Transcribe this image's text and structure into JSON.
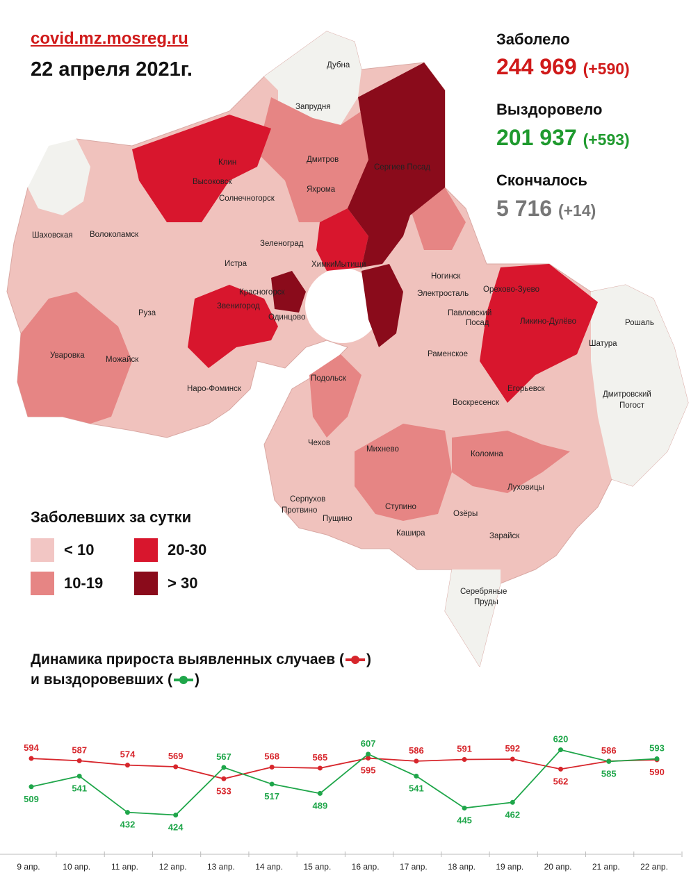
{
  "header": {
    "site": "covid.mz.mosreg.ru",
    "date": "22 апреля 2021г."
  },
  "stats": {
    "infected": {
      "label": "Заболело",
      "value": "244 969",
      "delta": "(+590)",
      "color": "#d01a1a"
    },
    "recovered": {
      "label": "Выздоровело",
      "value": "201 937",
      "delta": "(+593)",
      "color": "#1f9a2e"
    },
    "died": {
      "label": "Скончалось",
      "value": "5 716",
      "delta": "(+14)",
      "color": "#777777"
    }
  },
  "map": {
    "labels": [
      "Дубна",
      "Запрудня",
      "Клин",
      "Высоковск",
      "Дмитров",
      "Яхрома",
      "Сергиев Посад",
      "Солнечногорск",
      "Шаховская",
      "Волоколамск",
      "Зеленоград",
      "Истра",
      "Мытищи",
      "Химки",
      "Ногинск",
      "Электросталь",
      "Орехово-Зуево",
      "Ликино-Дулёво",
      "Рошаль",
      "Красногорск",
      "Звенигород",
      "Одинцово",
      "Павловский",
      "Посад",
      "Руза",
      "Уваровка",
      "Можайск",
      "Шатура",
      "Раменское",
      "Наро-Фоминск",
      "Подольск",
      "Егорьевск",
      "Воскресенск",
      "Дмитровский",
      "Погост",
      "Чехов",
      "Михнево",
      "Коломна",
      "Луховицы",
      "Серпухов",
      "Пущино",
      "Ступино",
      "Озёры",
      "Протвино",
      "Кашира",
      "Зарайск",
      "Серебряные",
      "Пруды"
    ],
    "colors": {
      "lt10": "#f2c6c4",
      "10_19": "#e68584",
      "20_30": "#d8162d",
      "gt30": "#8a0b1b",
      "none": "#f2f2ee"
    }
  },
  "legend": {
    "title": "Заболевших за сутки",
    "items": [
      {
        "label": "< 10",
        "color": "#f2c6c4"
      },
      {
        "label": "20-30",
        "color": "#d8162d"
      },
      {
        "label": "10-19",
        "color": "#e68584"
      },
      {
        "label": "> 30",
        "color": "#8a0b1b"
      }
    ]
  },
  "dynamics": {
    "title_line1": "Динамика прироста выявленных случаев (",
    "title_line1_end": ")",
    "title_line2": "и выздоровевших (",
    "title_line2_end": ")"
  },
  "chart_data": {
    "type": "line",
    "categories": [
      "9 апр.",
      "10 апр.",
      "11 апр.",
      "12 апр.",
      "13 апр.",
      "14 апр.",
      "15 апр.",
      "16 апр.",
      "17 апр.",
      "18 апр.",
      "19 апр.",
      "20 апр.",
      "21 апр.",
      "22 апр."
    ],
    "series": [
      {
        "color": "#d7262c",
        "values": [
          594,
          587,
          574,
          569,
          533,
          568,
          565,
          595,
          586,
          591,
          592,
          562,
          586,
          590
        ]
      },
      {
        "color": "#1fa64a",
        "values": [
          509,
          541,
          432,
          424,
          567,
          517,
          489,
          607,
          541,
          445,
          462,
          620,
          585,
          593
        ]
      }
    ]
  }
}
